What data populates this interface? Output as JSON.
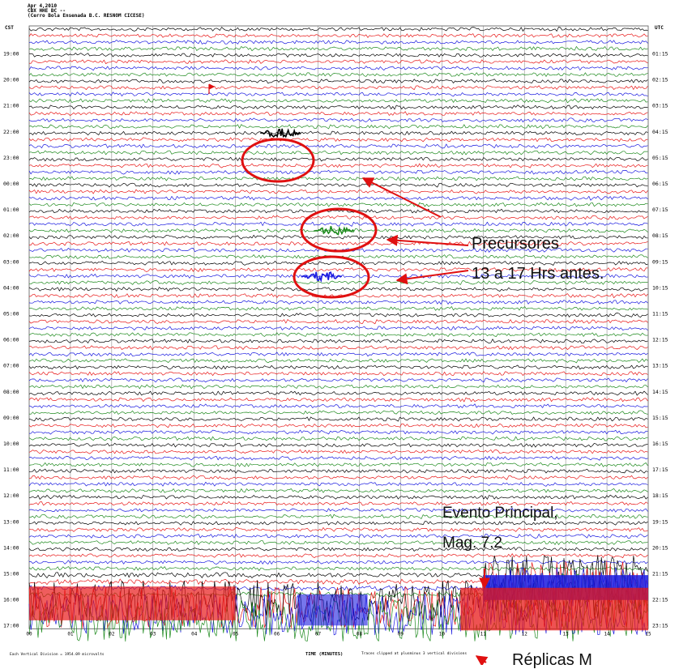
{
  "header": {
    "line1": "Apr 4,2010",
    "line2": "CBX HHE BC --",
    "line3": "(Cerro Bola Ensenada B.C. RESNOM CICESE)"
  },
  "left_axis": {
    "label": "CST"
  },
  "right_axis": {
    "label": "UTC"
  },
  "bottom": {
    "xlabel": "TIME (MINUTES)",
    "xlabel_note": "Traces clipped at plusminus 3 vertical divisions",
    "scale_note": "Each Vertical Division = 1954.09 microvolts"
  },
  "annotations": {
    "precursores_1": "Precursores",
    "precursores_2": "13 a 17 Hrs antes.",
    "evento_1": "Evento Principal,",
    "evento_2": "Mag. 7.2",
    "replicas": "Réplicas M"
  },
  "colors": {
    "trace_cycle": [
      "#000000",
      "#e81818",
      "#1a1ae0",
      "#1d8a1d"
    ],
    "highlight": "#e01010",
    "grid": "#7a7a7a"
  },
  "chart_data": {
    "type": "line",
    "description_type": "helicorder",
    "x_ticks": [
      "00",
      "01",
      "02",
      "03",
      "04",
      "05",
      "06",
      "07",
      "08",
      "09",
      "10",
      "11",
      "12",
      "13",
      "14",
      "15"
    ],
    "xlim": [
      0,
      15
    ],
    "left_hour_labels": [
      "19:00",
      "20:00",
      "21:00",
      "22:00",
      "23:00",
      "00:00",
      "01:00",
      "02:00",
      "03:00",
      "04:00",
      "05:00",
      "06:00",
      "07:00",
      "08:00",
      "09:00",
      "10:00",
      "11:00",
      "12:00",
      "13:00",
      "14:00",
      "15:00",
      "16:00",
      "17:00"
    ],
    "right_hour_labels": [
      "01:15",
      "02:15",
      "03:15",
      "04:15",
      "05:15",
      "06:15",
      "07:15",
      "08:15",
      "09:15",
      "10:15",
      "11:15",
      "12:15",
      "13:15",
      "14:15",
      "15:15",
      "16:15",
      "17:15",
      "18:15",
      "19:15",
      "20:15",
      "21:15",
      "22:15",
      "23:15"
    ],
    "traces_per_hour": 4,
    "trace_minutes": 15,
    "precursor_events": [
      {
        "hour": "23:00",
        "minute_start": 5.6,
        "minute_end": 6.6,
        "color": "black"
      },
      {
        "hour": "02:00",
        "minute_start": 6.9,
        "minute_end": 7.9,
        "color": "green"
      },
      {
        "hour": "04:00",
        "minute_start": 6.6,
        "minute_end": 7.6,
        "color": "blue"
      }
    ],
    "main_event": {
      "hour": "16:00",
      "minute": 11.0,
      "magnitude": 7.2
    }
  }
}
